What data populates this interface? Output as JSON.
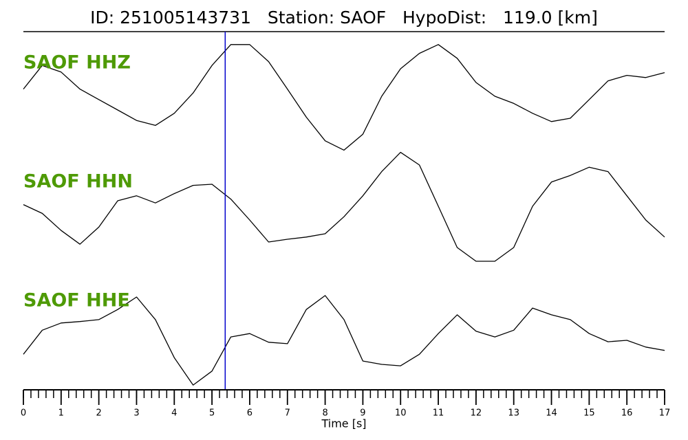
{
  "chart_data": {
    "type": "line",
    "title": "ID: 251005143731   Station: SAOF   HypoDist:   119.0 [km]",
    "xlabel": "Time [s]",
    "xlim": [
      0,
      17
    ],
    "xticks": [
      0,
      1,
      2,
      3,
      4,
      5,
      6,
      7,
      8,
      9,
      10,
      11,
      12,
      13,
      14,
      15,
      16,
      17
    ],
    "xminor_step": 0.2,
    "ylim": [
      -1,
      1
    ],
    "label_color": "#4e9a06",
    "marker": {
      "x": 5.35,
      "color": "#0000cc"
    },
    "x": [
      0,
      0.5,
      1,
      1.5,
      2,
      2.5,
      3,
      3.5,
      4,
      4.5,
      5,
      5.5,
      6,
      6.5,
      7,
      7.5,
      8,
      8.5,
      9,
      9.5,
      10,
      10.5,
      11,
      11.5,
      12,
      12.5,
      13,
      13.5,
      14,
      14.5,
      15,
      15.5,
      16,
      16.5,
      17
    ],
    "series": [
      {
        "name": "SAOF HHZ",
        "color": "#000000",
        "values": [
          0.13,
          0.56,
          0.44,
          0.13,
          -0.06,
          -0.25,
          -0.44,
          -0.53,
          -0.31,
          0.06,
          0.56,
          0.94,
          0.94,
          0.63,
          0.13,
          -0.38,
          -0.81,
          -0.98,
          -0.69,
          0,
          0.5,
          0.78,
          0.94,
          0.69,
          0.25,
          0,
          -0.13,
          -0.31,
          -0.46,
          -0.4,
          -0.06,
          0.28,
          0.38,
          0.34,
          0.43
        ]
      },
      {
        "name": "SAOF HHN",
        "color": "#000000",
        "values": [
          0.03,
          -0.13,
          -0.44,
          -0.69,
          -0.38,
          0.1,
          0.19,
          0.06,
          0.23,
          0.38,
          0.4,
          0.13,
          -0.25,
          -0.65,
          -0.6,
          -0.56,
          -0.5,
          -0.19,
          0.19,
          0.63,
          0.98,
          0.75,
          0,
          -0.75,
          -1,
          -1,
          -0.75,
          0,
          0.44,
          0.56,
          0.71,
          0.63,
          0.19,
          -0.25,
          -0.56
        ]
      },
      {
        "name": "SAOF HHE",
        "color": "#000000",
        "values": [
          -0.29,
          0.21,
          0.36,
          0.39,
          0.43,
          0.64,
          0.9,
          0.43,
          -0.36,
          -0.93,
          -0.64,
          0.07,
          0.14,
          -0.04,
          -0.07,
          0.64,
          0.93,
          0.43,
          -0.43,
          -0.5,
          -0.53,
          -0.29,
          0.14,
          0.53,
          0.19,
          0.07,
          0.21,
          0.67,
          0.53,
          0.43,
          0.14,
          -0.03,
          0,
          -0.14,
          -0.21
        ]
      }
    ]
  }
}
